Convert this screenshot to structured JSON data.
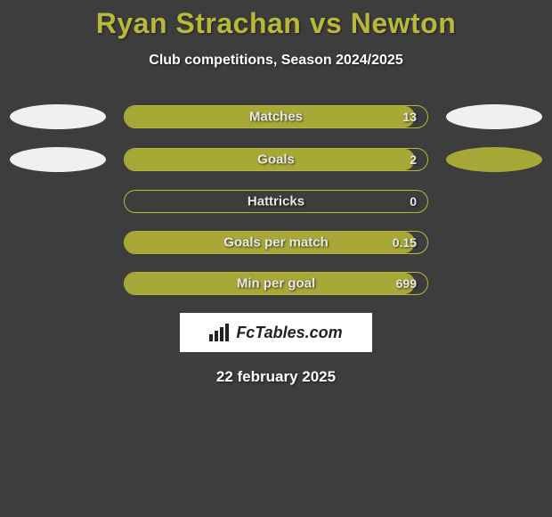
{
  "title": "Ryan Strachan vs Newton",
  "subtitle": "Club competitions, Season 2024/2025",
  "background_color": "#3d3d3d",
  "accent_color": "#b8b83a",
  "bar_fill_color": "#a8a838",
  "text_color": "#ffffff",
  "stats": [
    {
      "label": "Matches",
      "value": "13",
      "fill_pct": 96,
      "left_ellipse": "light",
      "right_ellipse": "light"
    },
    {
      "label": "Goals",
      "value": "2",
      "fill_pct": 96,
      "left_ellipse": "light",
      "right_ellipse": "olive"
    },
    {
      "label": "Hattricks",
      "value": "0",
      "fill_pct": 0,
      "left_ellipse": null,
      "right_ellipse": null
    },
    {
      "label": "Goals per match",
      "value": "0.15",
      "fill_pct": 96,
      "left_ellipse": null,
      "right_ellipse": null
    },
    {
      "label": "Min per goal",
      "value": "699",
      "fill_pct": 96,
      "left_ellipse": null,
      "right_ellipse": null
    }
  ],
  "logo_text": "FcTables.com",
  "date": "22 february 2025"
}
